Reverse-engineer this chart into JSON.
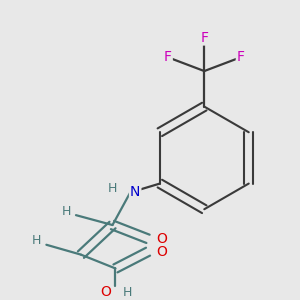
{
  "background_color": "#e8e8e8",
  "bond_color": "#3a3a3a",
  "chain_bond_color": "#4a7a7a",
  "atom_colors": {
    "O": "#dd0000",
    "N": "#0000cc",
    "F": "#cc00bb",
    "H": "#4a7a7a",
    "C": "#3a3a3a"
  },
  "line_width": 1.6,
  "ring_lw": 1.5
}
